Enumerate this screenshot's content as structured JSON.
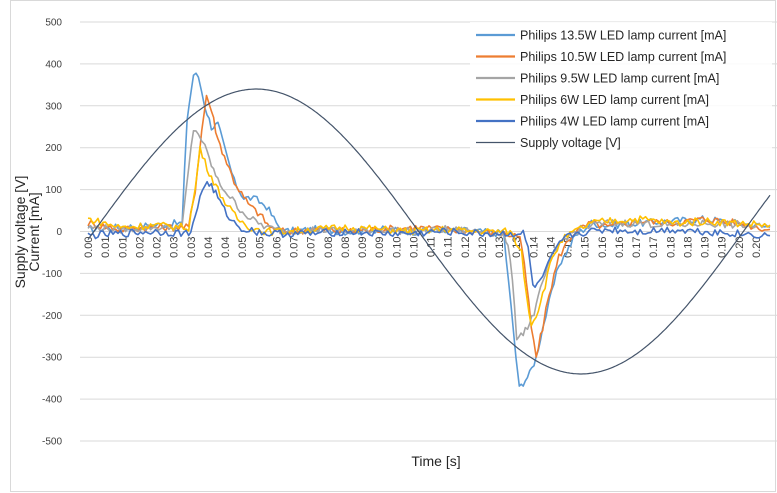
{
  "chart_data": {
    "type": "line",
    "title": "",
    "xlabel": "Time [s]",
    "ylabel_lines": [
      "Supply voltage [V]",
      "Current [mA]"
    ],
    "xlim": [
      0,
      0.21
    ],
    "ylim": [
      -500,
      500
    ],
    "y_ticks": [
      "500",
      "400",
      "300",
      "200",
      "100",
      "0",
      "-100",
      "-200",
      "-300",
      "-400",
      "-500"
    ],
    "x_ticks": [
      "0.00",
      "0.01",
      "0.01",
      "0.02",
      "0.02",
      "0.03",
      "0.03",
      "0.04",
      "0.04",
      "0.05",
      "0.05",
      "0.06",
      "0.07",
      "0.07",
      "0.08",
      "0.08",
      "0.09",
      "0.09",
      "0.10",
      "0.10",
      "0.11",
      "0.11",
      "0.12",
      "0.12",
      "0.13",
      "0.13",
      "0.14",
      "0.14",
      "0.15",
      "0.15",
      "0.16",
      "0.16",
      "0.17",
      "0.17",
      "0.18",
      "0.18",
      "0.19",
      "0.19",
      "0.20",
      "0.20"
    ],
    "grid": "horizontal",
    "legend_position": "top-right",
    "series": [
      {
        "name": "Philips 13.5W LED lamp current [mA]",
        "color": "#5b9bd5",
        "x": [
          0,
          0.01,
          0.02,
          0.029,
          0.0305,
          0.0325,
          0.034,
          0.036,
          0.038,
          0.04,
          0.042,
          0.045,
          0.048,
          0.05,
          0.052,
          0.055,
          0.058,
          0.06,
          0.07,
          0.08,
          0.09,
          0.1,
          0.11,
          0.12,
          0.128,
          0.1318,
          0.1328,
          0.134,
          0.136,
          0.138,
          0.14,
          0.142,
          0.145,
          0.148,
          0.15,
          0.155,
          0.16,
          0.17,
          0.18,
          0.19,
          0.2,
          0.21
        ],
        "y": [
          5,
          10,
          15,
          20,
          270,
          375,
          370,
          300,
          250,
          255,
          200,
          120,
          80,
          80,
          75,
          60,
          20,
          0,
          5,
          0,
          5,
          0,
          5,
          0,
          -5,
          -300,
          -375,
          -360,
          -340,
          -300,
          -230,
          -170,
          -80,
          -40,
          -10,
          20,
          15,
          20,
          25,
          30,
          20,
          10
        ]
      },
      {
        "name": "Philips 10.5W LED lamp current [mA]",
        "color": "#ed7d31",
        "x": [
          0,
          0.01,
          0.02,
          0.031,
          0.033,
          0.035,
          0.0365,
          0.038,
          0.04,
          0.042,
          0.045,
          0.048,
          0.05,
          0.053,
          0.056,
          0.06,
          0.07,
          0.08,
          0.09,
          0.1,
          0.11,
          0.12,
          0.133,
          0.135,
          0.1365,
          0.138,
          0.14,
          0.142,
          0.145,
          0.148,
          0.15,
          0.155,
          0.16,
          0.17,
          0.18,
          0.19,
          0.2,
          0.21
        ],
        "y": [
          20,
          5,
          10,
          10,
          100,
          240,
          325,
          290,
          220,
          180,
          120,
          80,
          60,
          40,
          10,
          0,
          5,
          0,
          5,
          10,
          5,
          0,
          -10,
          -120,
          -230,
          -300,
          -230,
          -150,
          -60,
          -20,
          0,
          20,
          10,
          25,
          20,
          30,
          20,
          5
        ]
      },
      {
        "name": "Philips 9.5W LED lamp current [mA]",
        "color": "#a5a5a5",
        "x": [
          0,
          0.01,
          0.02,
          0.029,
          0.031,
          0.0325,
          0.034,
          0.036,
          0.038,
          0.04,
          0.043,
          0.046,
          0.05,
          0.055,
          0.06,
          0.07,
          0.08,
          0.09,
          0.1,
          0.11,
          0.12,
          0.128,
          0.13,
          0.132,
          0.134,
          0.136,
          0.138,
          0.14,
          0.143,
          0.146,
          0.15,
          0.155,
          0.16,
          0.17,
          0.18,
          0.19,
          0.2,
          0.21
        ],
        "y": [
          10,
          5,
          10,
          10,
          150,
          245,
          235,
          200,
          160,
          120,
          90,
          60,
          30,
          10,
          0,
          5,
          0,
          5,
          0,
          5,
          0,
          -5,
          -60,
          -250,
          -240,
          -220,
          -180,
          -120,
          -60,
          -20,
          0,
          15,
          20,
          20,
          15,
          20,
          15,
          10
        ]
      },
      {
        "name": "Philips 6W LED lamp current [mA]",
        "color": "#ffc000",
        "x": [
          0,
          0.01,
          0.02,
          0.031,
          0.033,
          0.0345,
          0.036,
          0.038,
          0.04,
          0.043,
          0.046,
          0.05,
          0.055,
          0.06,
          0.07,
          0.08,
          0.09,
          0.1,
          0.11,
          0.12,
          0.13,
          0.1335,
          0.135,
          0.1365,
          0.138,
          0.14,
          0.143,
          0.146,
          0.15,
          0.155,
          0.16,
          0.17,
          0.18,
          0.19,
          0.2,
          0.21
        ],
        "y": [
          30,
          10,
          15,
          10,
          100,
          200,
          165,
          130,
          100,
          60,
          30,
          10,
          0,
          0,
          5,
          10,
          5,
          0,
          5,
          0,
          0,
          -50,
          -150,
          -220,
          -200,
          -150,
          -60,
          -20,
          0,
          20,
          25,
          30,
          20,
          25,
          20,
          15
        ]
      },
      {
        "name": "Philips 4W LED lamp current [mA]",
        "color": "#4472c4",
        "x": [
          0,
          0.01,
          0.02,
          0.031,
          0.033,
          0.0345,
          0.036,
          0.038,
          0.04,
          0.042,
          0.045,
          0.048,
          0.052,
          0.055,
          0.06,
          0.07,
          0.08,
          0.09,
          0.1,
          0.11,
          0.12,
          0.134,
          0.1355,
          0.137,
          0.139,
          0.141,
          0.143,
          0.146,
          0.15,
          0.155,
          0.16,
          0.17,
          0.18,
          0.19,
          0.2,
          0.21
        ],
        "y": [
          -10,
          -5,
          0,
          -5,
          30,
          85,
          115,
          110,
          80,
          50,
          20,
          5,
          0,
          -5,
          -5,
          -5,
          0,
          -5,
          -5,
          0,
          -5,
          -5,
          -40,
          -130,
          -125,
          -90,
          -60,
          -20,
          -5,
          0,
          5,
          0,
          5,
          0,
          -5,
          -10
        ]
      },
      {
        "name": "Supply voltage [V]",
        "color": "#44546a",
        "function": "sine",
        "amplitude": 340,
        "phase_zero_time": 0.0018,
        "period": 0.2
      }
    ]
  }
}
